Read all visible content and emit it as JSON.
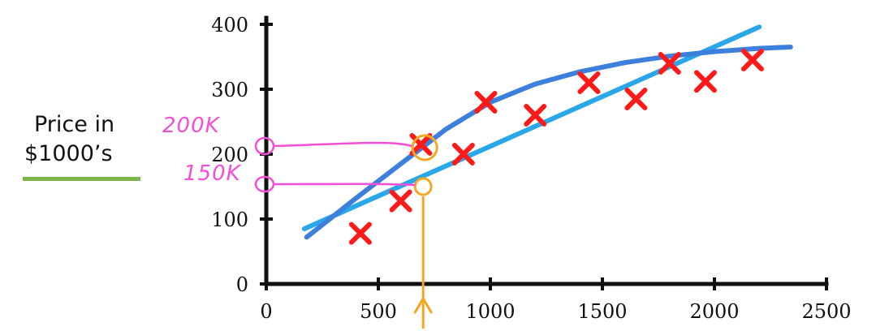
{
  "chart_data": {
    "type": "scatter",
    "ylabel": [
      "Price in",
      "$1000’s"
    ],
    "xlim": [
      0,
      2500
    ],
    "ylim": [
      0,
      400
    ],
    "x_ticks": [
      0,
      500,
      1000,
      1500,
      2000,
      2500
    ],
    "y_ticks": [
      0,
      100,
      200,
      300,
      400
    ],
    "grid": false,
    "series": [
      {
        "marker": "x",
        "color": "#ff1a1a",
        "points": [
          [
            420,
            78
          ],
          [
            600,
            128
          ],
          [
            690,
            215
          ],
          [
            880,
            200
          ],
          [
            980,
            280
          ],
          [
            1200,
            260
          ],
          [
            1440,
            310
          ],
          [
            1650,
            285
          ],
          [
            1800,
            340
          ],
          [
            1960,
            312
          ],
          [
            2170,
            345
          ]
        ]
      }
    ],
    "fits": [
      {
        "kind": "linear",
        "color": "#2aa7e8",
        "points": [
          [
            170,
            85
          ],
          [
            2200,
            396
          ]
        ]
      },
      {
        "kind": "quadratic",
        "color": "#3d7fdc",
        "points": [
          [
            180,
            72
          ],
          [
            400,
            132
          ],
          [
            600,
            185
          ],
          [
            800,
            238
          ],
          [
            1000,
            280
          ],
          [
            1200,
            308
          ],
          [
            1400,
            327
          ],
          [
            1600,
            341
          ],
          [
            1800,
            351
          ],
          [
            2000,
            358
          ],
          [
            2200,
            363
          ],
          [
            2340,
            365
          ]
        ]
      }
    ],
    "annotations": {
      "query_x": 700,
      "linear_prediction": 150,
      "quadratic_prediction": 200,
      "label_high": "200K",
      "label_low": "150K",
      "pink": "#f24fd6",
      "orange": "#f5a623"
    }
  }
}
